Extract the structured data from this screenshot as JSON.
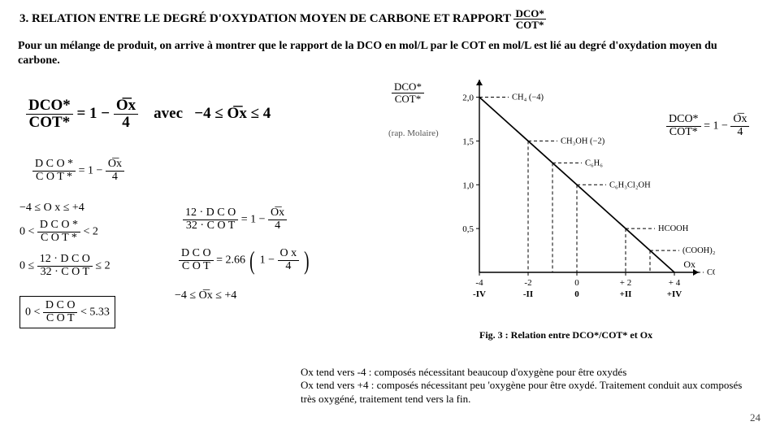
{
  "section_number": "3.",
  "title_text": "RELATION ENTRE LE DEGRÉ D'OXYDATION MOYEN DE CARBONE ET RAPPORT",
  "title_ratio_num": "DCO*",
  "title_ratio_den": "COT*",
  "intro": "Pour un mélange de produit, on arrive à montrer que le rapport de la DCO en mol/L par le COT en mol/L est lié au degré d'oxydation moyen du carbone.",
  "eq_main_lhs_num": "DCO*",
  "eq_main_lhs_den": "COT*",
  "eq_main_1": "= 1 −",
  "eq_main_rhs_num": "O͞x",
  "eq_main_rhs_den": "4",
  "eq_main_avec": "avec",
  "eq_main_range": "−4 ≤ O͞x ≤ 4",
  "eq_s1_lhs_num": "D C O *",
  "eq_s1_lhs_den": "C O T *",
  "eq_s1_mid": "= 1 −",
  "eq_s1_rhs_num": "O͞x",
  "eq_s1_rhs_den": "4",
  "eq_s2": "−4 ≤ O x ≤ +4",
  "eq_s3_pre": "0 <",
  "eq_s3_num": "D C O *",
  "eq_s3_den": "C O T *",
  "eq_s3_post": "< 2",
  "eq_s4_pre": "0 ≤",
  "eq_s4_num": "12 · D C O",
  "eq_s4_den": "32 · C O T",
  "eq_s4_post": "≤ 2",
  "eq_box_pre": "0 <",
  "eq_box_num": "D C O",
  "eq_box_den": "C O T",
  "eq_box_post": "< 5.33",
  "eq_m1_lhs_num": "12 · D C O",
  "eq_m1_lhs_den": "32 · C O T",
  "eq_m1_mid": "= 1 −",
  "eq_m1_rhs_num": "O͞x",
  "eq_m1_rhs_den": "4",
  "eq_m2_lhs_num": "D C O",
  "eq_m2_lhs_den": "C O T",
  "eq_m2_mid": "= 2.66",
  "eq_m2_rhs_pre": "1 −",
  "eq_m2_rhs_num": "O x",
  "eq_m2_rhs_den": "4",
  "eq_m3": "−4 ≤ O͞x ≤ +4",
  "yaxis_num": "DCO*",
  "yaxis_den": "COT*",
  "rap_mol": "(rap. Molaire)",
  "eq_right_lhs_num": "DCO*",
  "eq_right_lhs_den": "COT*",
  "eq_right_mid": "= 1 −",
  "eq_right_rhs_num": "O͞x",
  "eq_right_rhs_den": "4",
  "fig_caption": "Fig. 3 : Relation entre DCO*/COT* et Ox",
  "notes_line1": "Ox tend vers -4 :  composés nécessitant beaucoup d'oxygène pour être oxydés",
  "notes_line2": "Ox tend vers +4 : composés nécessitant peu 'oxygène pour être oxydé. Traitement conduit aux composés très oxygéné, traitement tend vers la fin.",
  "page_number": "24",
  "chart": {
    "type": "line",
    "x_min": -4,
    "x_max": 5,
    "y_min": 0,
    "y_max": 2.2,
    "x_ticks": [
      -4,
      -2,
      0,
      2,
      4
    ],
    "x_tick_labels_roman": [
      "-IV",
      "-II",
      "0",
      "+II",
      "+IV"
    ],
    "y_ticks": [
      0.5,
      1.0,
      1.5,
      2.0
    ],
    "x_axis_label": "Ox",
    "line": {
      "points": [
        [
          -4,
          2.0
        ],
        [
          4,
          0.0
        ]
      ]
    },
    "compounds": [
      {
        "label": "CH₄ (−4)",
        "ox": -4,
        "y": 2.0
      },
      {
        "label": "CH₃OH (−2)",
        "ox": -2,
        "y": 1.5
      },
      {
        "label": "C₆H₆",
        "ox": -1,
        "y": 1.25
      },
      {
        "label": "C₆H₃Cl₂OH",
        "ox": 0,
        "y": 1.0
      },
      {
        "label": "HCOOH",
        "ox": 2,
        "y": 0.5
      },
      {
        "label": "(COOH)₂  (+3)",
        "ox": 3,
        "y": 0.25
      },
      {
        "label": "CO₂ (+4)",
        "ox": 4,
        "y": 0.0
      }
    ],
    "colors": {
      "axis": "#000000",
      "line": "#000000",
      "dash": "#000000",
      "text": "#000000",
      "bg": "#ffffff"
    },
    "stroke_width": 1.4,
    "axis_font_size": 11,
    "tick_font_size": 11
  }
}
